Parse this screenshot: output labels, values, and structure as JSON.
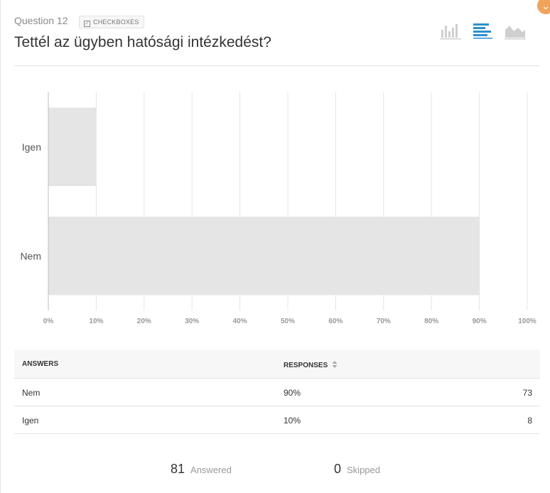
{
  "question": {
    "number": "Question 12",
    "type_badge": "CHECKBOXES",
    "title": "Tettél az ügyben hatósági intézkedést?"
  },
  "chart_types": [
    {
      "name": "vertical-bar-chart-icon",
      "active": false
    },
    {
      "name": "horizontal-bar-chart-icon",
      "active": true
    },
    {
      "name": "area-chart-icon",
      "active": false
    }
  ],
  "colors": {
    "bar": "#e5e5e5",
    "accent": "#2d8fd0",
    "inactive_icon": "#cfcfcf",
    "grid": "#e4e4e4",
    "tick": "#999999",
    "corner": "#f0a35b"
  },
  "chart_data": {
    "type": "bar",
    "orientation": "horizontal",
    "categories": [
      "Igen",
      "Nem"
    ],
    "values": [
      10,
      90
    ],
    "xlim": [
      0,
      100
    ],
    "xticks": [
      "0%",
      "10%",
      "20%",
      "30%",
      "40%",
      "50%",
      "60%",
      "70%",
      "80%",
      "90%",
      "100%"
    ],
    "title": "",
    "xlabel": "",
    "ylabel": "",
    "grid": true
  },
  "table": {
    "headers": {
      "answers": "ANSWERS",
      "responses": "RESPONSES",
      "sort_icon": "sort-icon"
    },
    "rows": [
      {
        "answer": "Nem",
        "percent": "90%",
        "count": "73"
      },
      {
        "answer": "Igen",
        "percent": "10%",
        "count": "8"
      }
    ]
  },
  "summary": {
    "answered_count": "81",
    "answered_label": "Answered",
    "skipped_count": "0",
    "skipped_label": "Skipped"
  }
}
